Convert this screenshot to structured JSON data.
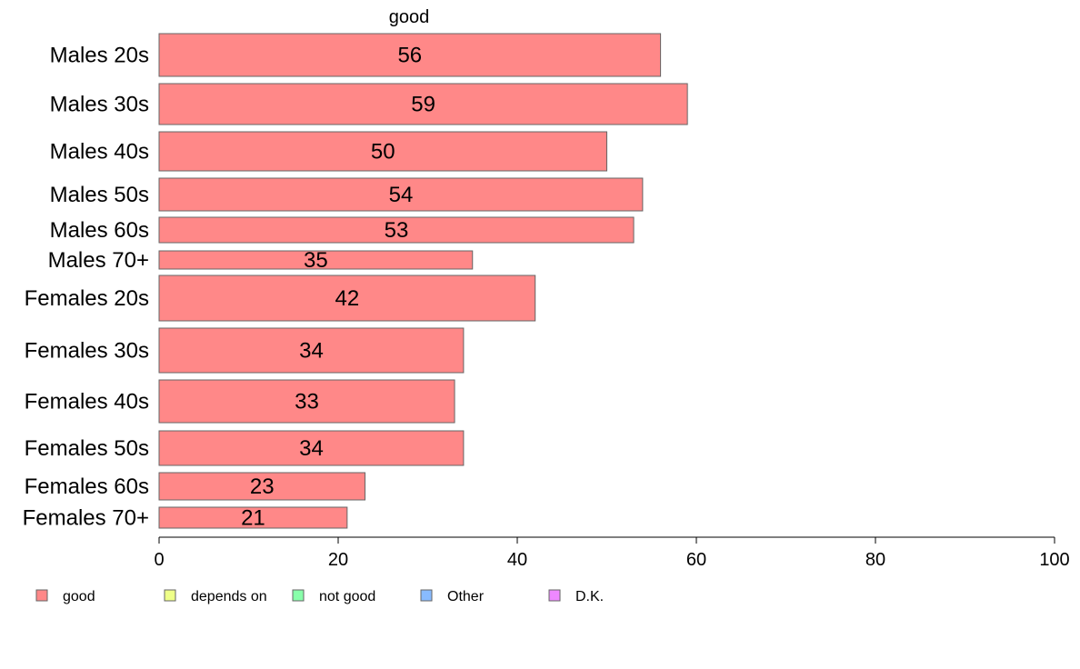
{
  "chart_data": {
    "type": "bar",
    "orientation": "horizontal",
    "title": "good",
    "categories": [
      "Males 20s",
      "Males 30s",
      "Males 40s",
      "Males 50s",
      "Males 60s",
      "Males 70+",
      "Females 20s",
      "Females 30s",
      "Females 40s",
      "Females 50s",
      "Females 60s",
      "Females 70+"
    ],
    "series": [
      {
        "name": "good",
        "values": [
          56,
          59,
          50,
          54,
          53,
          35,
          42,
          34,
          33,
          34,
          23,
          21
        ],
        "color": "#ff8888"
      }
    ],
    "xlim": [
      0,
      100
    ],
    "xticks": [
      0,
      20,
      40,
      60,
      80,
      100
    ],
    "legend": [
      {
        "label": "good",
        "color": "#ff8888"
      },
      {
        "label": "depends on",
        "color": "#eeff88"
      },
      {
        "label": "not good",
        "color": "#88ffaa"
      },
      {
        "label": "Other",
        "color": "#88bbff"
      },
      {
        "label": "D.K.",
        "color": "#ee88ff"
      }
    ],
    "legend_position": "bottom",
    "grid": false
  }
}
